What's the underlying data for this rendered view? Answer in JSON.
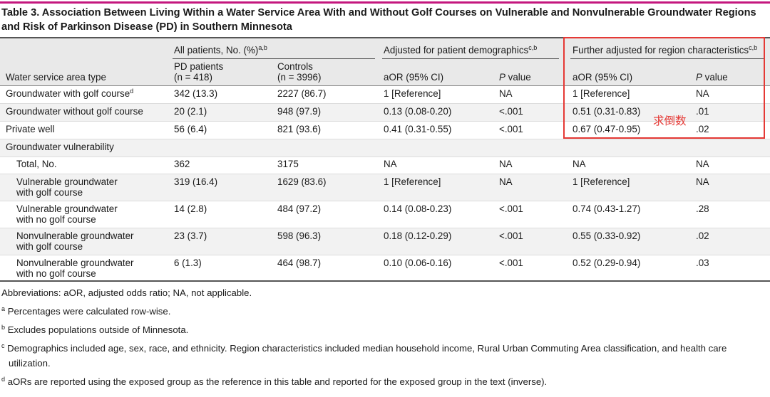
{
  "title": "Table 3. Association Between Living Within a Water Service Area With and Without Golf Courses on Vulnerable and Nonvulnerable Groundwater Regions and Risk of Parkinson Disease (PD) in Southern Minnesota",
  "header": {
    "group_all": "All patients, No. (%)",
    "group_all_sup": "a,b",
    "group_adj": "Adjusted for patient demographics",
    "group_adj_sup": "c,b",
    "group_further": "Further adjusted for region characteristics",
    "group_further_sup": "c,b",
    "col_type": "Water service area type",
    "col_pd_1": "PD patients",
    "col_pd_2": "(n = 418)",
    "col_ctrl_1": "Controls",
    "col_ctrl_2": "(n = 3996)",
    "col_aor": "aOR (95% CI)",
    "col_p_italic": "P",
    "col_p_rest": " value",
    "col_aor2": "aOR (95% CI)",
    "col_p2_italic": "P",
    "col_p2_rest": " value"
  },
  "rows": [
    {
      "label": "Groundwater with golf course",
      "sup": "d",
      "pd": "342 (13.3)",
      "ctrl": "2227 (86.7)",
      "aor1": "1 [Reference]",
      "p1": "NA",
      "aor2": "1 [Reference]",
      "p2": "NA"
    },
    {
      "label": "Groundwater without golf course",
      "pd": "20 (2.1)",
      "ctrl": "948 (97.9)",
      "aor1": "0.13 (0.08-0.20)",
      "p1": "<.001",
      "aor2": "0.51 (0.31-0.83)",
      "p2": ".01"
    },
    {
      "label": "Private well",
      "pd": "56 (6.4)",
      "ctrl": "821 (93.6)",
      "aor1": "0.41 (0.31-0.55)",
      "p1": "<.001",
      "aor2": "0.67 (0.47-0.95)",
      "p2": ".02"
    },
    {
      "label": "Groundwater vulnerability"
    },
    {
      "label": "Total, No.",
      "pd": "362",
      "ctrl": "3175",
      "aor1": "NA",
      "p1": "NA",
      "aor2": "NA",
      "p2": "NA"
    },
    {
      "label": "Vulnerable groundwater",
      "label2": "with golf course",
      "pd": "319 (16.4)",
      "ctrl": "1629 (83.6)",
      "aor1": "1 [Reference]",
      "p1": "NA",
      "aor2": "1 [Reference]",
      "p2": "NA"
    },
    {
      "label": "Vulnerable groundwater",
      "label2": "with no golf course",
      "pd": "14 (2.8)",
      "ctrl": "484 (97.2)",
      "aor1": "0.14 (0.08-0.23)",
      "p1": "<.001",
      "aor2": "0.74 (0.43-1.27)",
      "p2": ".28"
    },
    {
      "label": "Nonvulnerable groundwater",
      "label2": "with golf course",
      "pd": "23 (3.7)",
      "ctrl": "598 (96.3)",
      "aor1": "0.18 (0.12-0.29)",
      "p1": "<.001",
      "aor2": "0.55 (0.33-0.92)",
      "p2": ".02"
    },
    {
      "label": "Nonvulnerable groundwater",
      "label2": "with no golf course",
      "pd": "6 (1.3)",
      "ctrl": "464 (98.7)",
      "aor1": "0.10 (0.06-0.16)",
      "p1": "<.001",
      "aor2": "0.52 (0.29-0.94)",
      "p2": ".03"
    }
  ],
  "annotation": "求倒数",
  "footnotes": {
    "abbrev": "Abbreviations: aOR, adjusted odds ratio; NA, not applicable.",
    "a_mark": "a",
    "a": "Percentages were calculated row-wise.",
    "b_mark": "b",
    "b": "Excludes populations outside of Minnesota.",
    "c_mark": "c",
    "c1": "Demographics included age, sex, race, and ethnicity. Region characteristics included median household income, Rural Urban Commuting Area classification, and health care",
    "c2": "utilization.",
    "d_mark": "d",
    "d": "aORs are reported using the exposed group as the reference in this table and reported for the exposed group in the text (inverse)."
  },
  "colors": {
    "accent": "#c4177e",
    "highlight": "#e53935",
    "header_bg": "#e9e9e9"
  }
}
